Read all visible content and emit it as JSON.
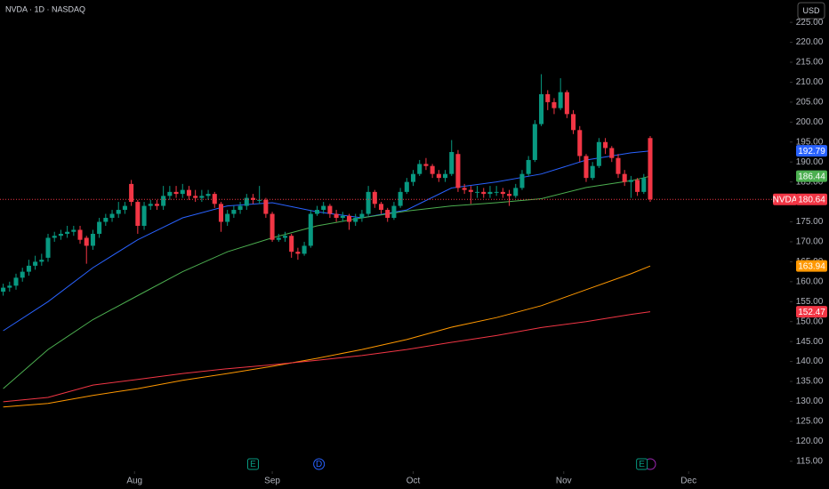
{
  "chart_data": {
    "type": "candlestick",
    "title": "NVDA · 1D · NASDAQ",
    "currency": "USD",
    "symbol": "NVDA",
    "up_color": "#089981",
    "down_color": "#f23645",
    "grid": false,
    "xlim": [
      -0.5,
      122.8
    ],
    "ylim": [
      112.5,
      230.6
    ],
    "xticks": [
      {
        "value": 20.5,
        "label": "Aug"
      },
      {
        "value": 42,
        "label": "Sep"
      },
      {
        "value": 64,
        "label": "Oct"
      },
      {
        "value": 87.5,
        "label": "Nov"
      },
      {
        "value": 107,
        "label": "Dec"
      }
    ],
    "yticks": [
      {
        "value": 115,
        "label": "115.00"
      },
      {
        "value": 120,
        "label": "120.00"
      },
      {
        "value": 125,
        "label": "125.00"
      },
      {
        "value": 130,
        "label": "130.00"
      },
      {
        "value": 135,
        "label": "135.00"
      },
      {
        "value": 140,
        "label": "140.00"
      },
      {
        "value": 145,
        "label": "145.00"
      },
      {
        "value": 150,
        "label": "150.00"
      },
      {
        "value": 155,
        "label": "155.00"
      },
      {
        "value": 160,
        "label": "160.00"
      },
      {
        "value": 165,
        "label": "165.00"
      },
      {
        "value": 170,
        "label": "170.00"
      },
      {
        "value": 175,
        "label": "175.00"
      },
      {
        "value": 180,
        "label": "180.00"
      },
      {
        "value": 185,
        "label": "185.00"
      },
      {
        "value": 190,
        "label": "190.00"
      },
      {
        "value": 195,
        "label": "195.00"
      },
      {
        "value": 200,
        "label": "200.00"
      },
      {
        "value": 205,
        "label": "205.00"
      },
      {
        "value": 210,
        "label": "210.00"
      },
      {
        "value": 215,
        "label": "215.00"
      },
      {
        "value": 220,
        "label": "220.00"
      },
      {
        "value": 225,
        "label": "225.00"
      }
    ],
    "open": [
      157.5,
      158.5,
      159,
      161,
      162.5,
      164,
      165,
      166,
      171,
      171.5,
      172,
      172.5,
      173,
      171,
      169,
      172,
      175,
      176,
      177,
      178,
      184.5,
      180,
      174,
      179,
      179.5,
      179,
      181.5,
      182.5,
      182,
      183,
      181.5,
      181,
      181.5,
      182,
      179.5,
      175,
      177,
      178,
      179,
      181,
      180.5,
      180.5,
      177,
      170.5,
      171,
      171.5,
      167.5,
      167,
      169,
      177,
      178,
      179,
      177,
      176,
      176.5,
      175,
      176,
      177,
      182.5,
      179.5,
      178,
      176,
      179,
      182.5,
      185,
      187,
      189.5,
      189,
      187,
      186,
      187,
      192,
      183.5,
      183,
      182.5,
      182.5,
      182,
      182.5,
      182.5,
      182,
      181.5,
      183.5,
      187,
      190.5,
      199.5,
      207,
      205,
      203.5,
      207.5,
      202,
      198,
      191.5,
      186,
      189,
      195,
      193.5,
      191,
      187,
      185,
      185.5,
      182.5,
      196
    ],
    "high": [
      159.5,
      160,
      162,
      163.5,
      165.5,
      166.5,
      167,
      172,
      172.5,
      173,
      174,
      174,
      174,
      171.5,
      173,
      176,
      177,
      178,
      180,
      180,
      185.5,
      180.5,
      180,
      180.5,
      180.5,
      184,
      184,
      184,
      184.5,
      184,
      183,
      183,
      183,
      182.5,
      180,
      178,
      179,
      180,
      182,
      182,
      184,
      181,
      177.5,
      172,
      172.5,
      172,
      168.5,
      170,
      178,
      179,
      180,
      179.5,
      178,
      177.5,
      177,
      177,
      178,
      184,
      183,
      180,
      178.5,
      180,
      183.5,
      186,
      188,
      190.5,
      191,
      189.5,
      188,
      188,
      195.5,
      193,
      184.5,
      184,
      184,
      183.5,
      184,
      184,
      183.5,
      183,
      184.5,
      188,
      191.5,
      200.5,
      212,
      208,
      206,
      211,
      208,
      203,
      199,
      192,
      190,
      196,
      196,
      194,
      192,
      188,
      186.5,
      186,
      187,
      196.5
    ],
    "low": [
      156.5,
      157.5,
      158,
      160,
      161.5,
      163,
      164,
      165,
      170,
      170.5,
      171,
      171.5,
      169.5,
      164.5,
      168,
      171,
      174,
      175,
      176,
      177,
      179,
      172,
      173,
      178,
      178,
      178,
      180.5,
      181,
      181,
      180.5,
      180,
      180,
      180.5,
      178.5,
      172.5,
      174,
      176,
      177,
      178,
      179.5,
      179.5,
      176,
      170,
      170,
      170,
      166,
      165.5,
      166.5,
      168.5,
      176.5,
      177,
      176,
      175,
      175,
      173,
      174,
      175,
      176.5,
      178.5,
      177,
      175,
      175.5,
      178.5,
      182,
      184,
      186.5,
      188,
      186,
      185,
      185,
      186.5,
      182.5,
      182,
      179.5,
      181,
      181,
      181,
      181.5,
      181,
      179,
      181,
      183,
      186.5,
      190,
      199,
      203,
      202,
      203,
      201,
      197,
      190,
      185,
      185.5,
      188.5,
      192,
      190,
      186,
      184,
      181,
      181.5,
      182,
      180
    ],
    "close": [
      158.5,
      159,
      161,
      162.5,
      164,
      165,
      165.5,
      171,
      171.5,
      172,
      172.5,
      173,
      170.5,
      169,
      172,
      175,
      176,
      177,
      178,
      179,
      180,
      174,
      179,
      179.5,
      179,
      181.5,
      182.5,
      182,
      183,
      181.5,
      181,
      181.5,
      182,
      179.5,
      175,
      177,
      178,
      179,
      181,
      180.5,
      180.5,
      177,
      170.5,
      171,
      171.5,
      167.5,
      167,
      169,
      177,
      178,
      179,
      177,
      176,
      176.5,
      175,
      176,
      177,
      182.5,
      179.5,
      178,
      176,
      179,
      182.5,
      185,
      187,
      189.5,
      189,
      187,
      186,
      187,
      192.5,
      183.5,
      183,
      182.5,
      182.5,
      182,
      182.5,
      182.5,
      182,
      181.5,
      183.5,
      187,
      190.5,
      199.5,
      207,
      205,
      203.5,
      207.5,
      202,
      198,
      191.5,
      186,
      189,
      195,
      193.5,
      191,
      187,
      185,
      185.5,
      182.5,
      186,
      180.64
    ],
    "moving_averages": [
      {
        "color": "#2962ff",
        "x": [
          0,
          7,
          14,
          21,
          28,
          35,
          42,
          49,
          56,
          63,
          70,
          77,
          84,
          91,
          98,
          101
        ],
        "values": [
          147.7,
          155,
          163.5,
          170.5,
          176,
          179,
          179.8,
          177.5,
          176,
          178,
          183.5,
          185,
          187,
          190.5,
          192.3,
          192.79
        ]
      },
      {
        "color": "#4caf50",
        "x": [
          0,
          7,
          14,
          21,
          28,
          35,
          42,
          49,
          56,
          63,
          70,
          77,
          84,
          91,
          98,
          101
        ],
        "values": [
          133.2,
          143,
          150.5,
          156.5,
          162.5,
          167.5,
          171,
          174,
          176,
          177.7,
          179,
          179.8,
          180.8,
          183.6,
          185.3,
          186.44
        ]
      },
      {
        "color": "#ff9800",
        "x": [
          0,
          7,
          14,
          21,
          28,
          35,
          42,
          49,
          56,
          63,
          70,
          77,
          84,
          91,
          98,
          101
        ],
        "values": [
          128.6,
          129.5,
          131.5,
          133.2,
          135.3,
          137,
          138.8,
          140.8,
          143,
          145.5,
          148.6,
          151,
          154,
          158,
          162,
          163.94
        ]
      },
      {
        "color": "#f23645",
        "x": [
          0,
          7,
          14,
          21,
          28,
          35,
          42,
          49,
          56,
          63,
          70,
          77,
          84,
          91,
          98,
          101
        ],
        "values": [
          129.9,
          131,
          134.1,
          135.5,
          137,
          138.2,
          139.2,
          140.3,
          141.5,
          143,
          144.8,
          146.5,
          148.5,
          150,
          151.8,
          152.47
        ]
      }
    ],
    "events": [
      {
        "x": 39,
        "label": "E",
        "color": "#089981"
      },
      {
        "x": 49.3,
        "label": "D",
        "color": "#2962ff"
      },
      {
        "x": 99.7,
        "label": "E",
        "color": "#089981"
      }
    ]
  }
}
